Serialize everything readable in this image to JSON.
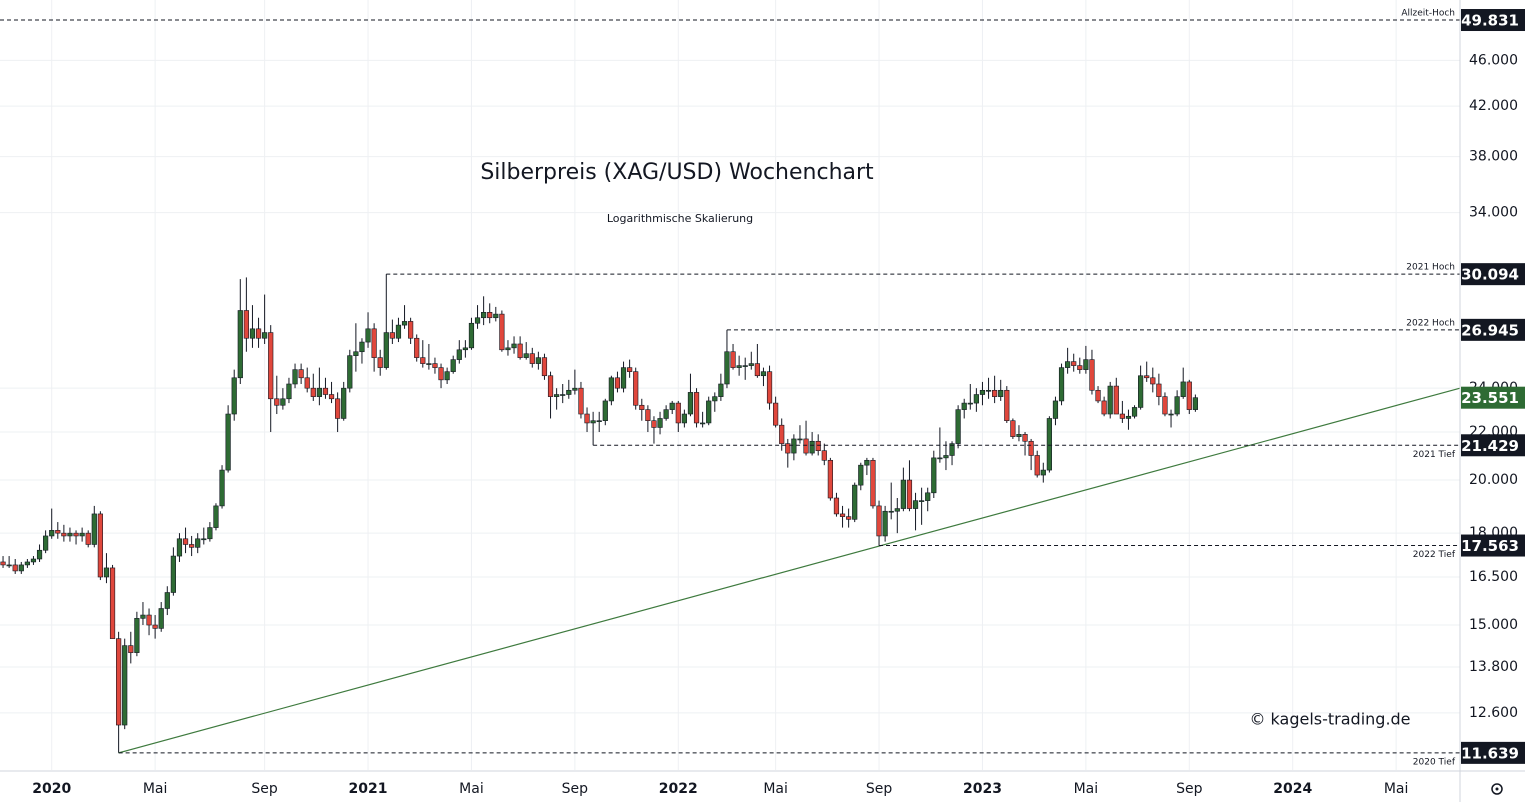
{
  "chart_data": {
    "type": "candlestick",
    "title": "Silberpreis (XAG/USD) Wochenchart",
    "subtitle": "Logarithmische Skalierung",
    "watermark": "© kagels-trading.de",
    "log_scale": true,
    "grid": true,
    "up_color": "#2e6b34",
    "down_color": "#e0473c",
    "trend_color": "#3e7a3e",
    "ylim": [
      11.25,
      51.85
    ],
    "yticks": [
      {
        "value": 12.6,
        "label": "12.600"
      },
      {
        "value": 13.8,
        "label": "13.800"
      },
      {
        "value": 15,
        "label": "15.000"
      },
      {
        "value": 16.5,
        "label": "16.500"
      },
      {
        "value": 18,
        "label": "18.000"
      },
      {
        "value": 20,
        "label": "20.000"
      },
      {
        "value": 22,
        "label": "22.000"
      },
      {
        "value": 24,
        "label": "24.000"
      },
      {
        "value": 34,
        "label": "34.000"
      },
      {
        "value": 38,
        "label": "38.000"
      },
      {
        "value": 42,
        "label": "42.000"
      },
      {
        "value": 46,
        "label": "46.000"
      }
    ],
    "levels": [
      {
        "value": 49.831,
        "note": "Allzeit-Hoch"
      },
      {
        "value": 30.094,
        "note": "2021 Hoch"
      },
      {
        "value": 26.945,
        "note": "2022 Hoch"
      },
      {
        "value": 21.429,
        "note": "2021 Tief"
      },
      {
        "value": 17.563,
        "note": "2022 Tief"
      },
      {
        "value": 11.639,
        "note": "2020 Tief"
      }
    ],
    "last_price": 23.551,
    "trendline": [
      11.639,
      24.0
    ],
    "categories": [
      null,
      null,
      null,
      null,
      null,
      null,
      null,
      null,
      "2020",
      null,
      null,
      null,
      null,
      null,
      null,
      null,
      null,
      null,
      null,
      null,
      null,
      null,
      null,
      null,
      null,
      "Mai",
      null,
      null,
      null,
      null,
      null,
      null,
      null,
      null,
      null,
      null,
      null,
      null,
      null,
      null,
      null,
      null,
      null,
      "Sep",
      null,
      null,
      null,
      null,
      null,
      null,
      null,
      null,
      null,
      null,
      null,
      null,
      null,
      null,
      null,
      null,
      "2021",
      null,
      null,
      null,
      null,
      null,
      null,
      null,
      null,
      null,
      null,
      null,
      null,
      null,
      null,
      null,
      null,
      "Mai",
      null,
      null,
      null,
      null,
      null,
      null,
      null,
      null,
      null,
      null,
      null,
      null,
      null,
      null,
      null,
      null,
      "Sep",
      null,
      null,
      null,
      null,
      null,
      null,
      null,
      null,
      null,
      null,
      null,
      null,
      null,
      null,
      null,
      null,
      "2022",
      null,
      null,
      null,
      null,
      null,
      null,
      null,
      null,
      null,
      null,
      null,
      null,
      null,
      null,
      null,
      "Mai",
      null,
      null,
      null,
      null,
      null,
      null,
      null,
      null,
      null,
      null,
      null,
      null,
      null,
      null,
      null,
      null,
      "Sep",
      null,
      null,
      null,
      null,
      null,
      null,
      null,
      null,
      null,
      null,
      null,
      null,
      null,
      null,
      null,
      null,
      "2023",
      null,
      null,
      null,
      null,
      null,
      null,
      null,
      null,
      null,
      null,
      null,
      null,
      null,
      null,
      null,
      null,
      "Mai",
      null,
      null,
      null,
      null,
      null,
      null,
      null,
      null,
      null,
      null,
      null,
      null,
      null,
      null,
      null,
      null,
      "Sep",
      null,
      null,
      null,
      null,
      null,
      null,
      null,
      null,
      null,
      null,
      null,
      null,
      null,
      null,
      null,
      null,
      "2024",
      null,
      null,
      null,
      null,
      null,
      null,
      null,
      null,
      null,
      null,
      null,
      null,
      null,
      null,
      null,
      null,
      "Mai",
      null,
      null,
      null,
      null,
      null,
      null,
      null,
      null,
      null,
      null
    ],
    "ohlc": [
      [
        17.0,
        17.2,
        16.8,
        16.9
      ],
      [
        16.9,
        17.2,
        16.8,
        16.9
      ],
      [
        16.9,
        17.1,
        16.6,
        16.7
      ],
      [
        16.7,
        17.0,
        16.6,
        16.9
      ],
      [
        16.9,
        17.1,
        16.8,
        17.0
      ],
      [
        17.0,
        17.2,
        16.9,
        17.1
      ],
      [
        17.1,
        17.6,
        17.0,
        17.4
      ],
      [
        17.4,
        18.1,
        17.3,
        17.9
      ],
      [
        17.9,
        18.9,
        17.8,
        18.1
      ],
      [
        18.1,
        18.4,
        17.8,
        18.0
      ],
      [
        18.0,
        18.3,
        17.7,
        17.9
      ],
      [
        17.9,
        18.2,
        17.7,
        18.0
      ],
      [
        18.0,
        18.1,
        17.6,
        17.9
      ],
      [
        17.9,
        18.2,
        17.7,
        18.0
      ],
      [
        18.0,
        18.1,
        17.5,
        17.6
      ],
      [
        17.6,
        19.0,
        17.5,
        18.7
      ],
      [
        18.7,
        18.8,
        16.4,
        16.5
      ],
      [
        16.5,
        17.3,
        16.3,
        16.8
      ],
      [
        16.8,
        16.9,
        14.6,
        14.6
      ],
      [
        14.6,
        14.8,
        11.639,
        12.3
      ],
      [
        12.3,
        14.6,
        12.2,
        14.4
      ],
      [
        14.4,
        14.8,
        13.9,
        14.2
      ],
      [
        14.2,
        15.4,
        14.1,
        15.2
      ],
      [
        15.2,
        15.7,
        15.0,
        15.3
      ],
      [
        15.3,
        15.5,
        14.7,
        15.0
      ],
      [
        15.0,
        15.3,
        14.6,
        14.9
      ],
      [
        14.9,
        15.7,
        14.8,
        15.5
      ],
      [
        15.5,
        16.2,
        15.3,
        16.0
      ],
      [
        16.0,
        17.5,
        15.9,
        17.2
      ],
      [
        17.2,
        18.0,
        17.0,
        17.8
      ],
      [
        17.8,
        18.2,
        17.3,
        17.6
      ],
      [
        17.6,
        17.9,
        17.2,
        17.5
      ],
      [
        17.5,
        18.0,
        17.3,
        17.8
      ],
      [
        17.8,
        18.2,
        17.6,
        17.8
      ],
      [
        17.8,
        18.4,
        17.7,
        18.2
      ],
      [
        18.2,
        19.1,
        18.1,
        19.0
      ],
      [
        19.0,
        20.6,
        18.9,
        20.4
      ],
      [
        20.4,
        23.2,
        20.3,
        22.8
      ],
      [
        22.8,
        24.9,
        22.5,
        24.5
      ],
      [
        24.5,
        29.8,
        24.2,
        28.0
      ],
      [
        28.0,
        29.9,
        25.8,
        26.5
      ],
      [
        26.5,
        28.3,
        26.0,
        27.0
      ],
      [
        27.0,
        27.6,
        26.0,
        26.5
      ],
      [
        26.5,
        28.9,
        26.2,
        26.8
      ],
      [
        26.8,
        27.2,
        22.0,
        23.5
      ],
      [
        23.5,
        24.6,
        22.8,
        23.2
      ],
      [
        23.2,
        24.0,
        23.0,
        23.5
      ],
      [
        23.5,
        24.5,
        23.3,
        24.2
      ],
      [
        24.2,
        25.2,
        24.0,
        24.9
      ],
      [
        24.9,
        25.2,
        24.2,
        24.5
      ],
      [
        24.5,
        25.0,
        23.8,
        24.0
      ],
      [
        24.0,
        24.7,
        23.4,
        23.6
      ],
      [
        23.6,
        25.0,
        23.2,
        24.0
      ],
      [
        24.0,
        24.5,
        23.5,
        23.7
      ],
      [
        23.7,
        24.3,
        23.3,
        23.5
      ],
      [
        23.5,
        23.8,
        22.0,
        22.6
      ],
      [
        22.6,
        24.3,
        22.5,
        24.0
      ],
      [
        24.0,
        25.9,
        23.8,
        25.6
      ],
      [
        25.6,
        27.3,
        24.8,
        25.8
      ],
      [
        25.8,
        26.5,
        25.2,
        26.3
      ],
      [
        26.3,
        27.9,
        26.0,
        27.0
      ],
      [
        27.0,
        27.3,
        24.8,
        25.5
      ],
      [
        25.5,
        25.9,
        24.6,
        25.0
      ],
      [
        25.0,
        30.094,
        24.9,
        26.8
      ],
      [
        26.8,
        27.5,
        26.2,
        26.5
      ],
      [
        26.5,
        27.6,
        26.3,
        27.2
      ],
      [
        27.2,
        28.3,
        27.0,
        27.4
      ],
      [
        27.4,
        27.6,
        26.2,
        26.5
      ],
      [
        26.5,
        26.7,
        25.3,
        25.5
      ],
      [
        25.5,
        26.4,
        25.0,
        25.2
      ],
      [
        25.2,
        26.2,
        24.9,
        25.2
      ],
      [
        25.2,
        25.5,
        24.7,
        25.0
      ],
      [
        25.0,
        25.2,
        24.0,
        24.4
      ],
      [
        24.4,
        25.0,
        24.2,
        24.8
      ],
      [
        24.8,
        25.6,
        24.7,
        25.4
      ],
      [
        25.4,
        26.4,
        25.2,
        25.9
      ],
      [
        25.9,
        26.4,
        25.5,
        26.0
      ],
      [
        26.0,
        27.6,
        25.9,
        27.3
      ],
      [
        27.3,
        28.3,
        27.0,
        27.6
      ],
      [
        27.6,
        28.8,
        27.2,
        27.9
      ],
      [
        27.9,
        28.4,
        27.3,
        27.6
      ],
      [
        27.6,
        28.2,
        27.4,
        27.8
      ],
      [
        27.8,
        28.0,
        25.8,
        25.9
      ],
      [
        25.9,
        26.4,
        25.6,
        26.0
      ],
      [
        26.0,
        26.6,
        25.7,
        26.2
      ],
      [
        26.2,
        26.6,
        25.4,
        25.5
      ],
      [
        25.5,
        26.3,
        25.4,
        25.7
      ],
      [
        25.7,
        26.0,
        25.0,
        25.2
      ],
      [
        25.2,
        25.8,
        24.9,
        25.5
      ],
      [
        25.5,
        25.7,
        24.4,
        24.6
      ],
      [
        24.6,
        24.8,
        22.6,
        23.6
      ],
      [
        23.6,
        24.0,
        23.0,
        23.7
      ],
      [
        23.7,
        24.2,
        23.3,
        23.7
      ],
      [
        23.7,
        24.4,
        23.5,
        23.9
      ],
      [
        23.9,
        24.9,
        23.7,
        24.0
      ],
      [
        24.0,
        24.3,
        22.6,
        22.8
      ],
      [
        22.8,
        23.1,
        22.0,
        22.4
      ],
      [
        22.4,
        22.9,
        21.429,
        22.5
      ],
      [
        22.5,
        22.9,
        22.0,
        22.5
      ],
      [
        22.5,
        23.5,
        22.3,
        23.4
      ],
      [
        23.4,
        24.6,
        23.2,
        24.5
      ],
      [
        24.5,
        24.8,
        23.8,
        24.0
      ],
      [
        24.0,
        25.3,
        23.8,
        25.0
      ],
      [
        25.0,
        25.4,
        24.5,
        24.8
      ],
      [
        24.8,
        25.0,
        23.0,
        23.2
      ],
      [
        23.2,
        23.5,
        22.5,
        23.0
      ],
      [
        23.0,
        23.2,
        22.0,
        22.5
      ],
      [
        22.5,
        22.7,
        21.5,
        22.2
      ],
      [
        22.2,
        22.9,
        21.9,
        22.6
      ],
      [
        22.6,
        23.2,
        22.5,
        23.0
      ],
      [
        23.0,
        23.4,
        22.8,
        23.3
      ],
      [
        23.3,
        23.4,
        22.0,
        22.4
      ],
      [
        22.4,
        23.0,
        22.2,
        22.8
      ],
      [
        22.8,
        24.7,
        22.7,
        23.8
      ],
      [
        23.8,
        24.0,
        22.2,
        22.4
      ],
      [
        22.4,
        22.9,
        22.2,
        22.4
      ],
      [
        22.4,
        23.6,
        22.3,
        23.4
      ],
      [
        23.4,
        23.8,
        22.9,
        23.6
      ],
      [
        23.6,
        24.7,
        23.4,
        24.2
      ],
      [
        24.2,
        26.945,
        24.0,
        25.8
      ],
      [
        25.8,
        26.2,
        24.9,
        25.0
      ],
      [
        25.0,
        25.6,
        24.6,
        25.1
      ],
      [
        25.1,
        25.5,
        24.4,
        25.1
      ],
      [
        25.1,
        25.8,
        24.9,
        25.2
      ],
      [
        25.2,
        26.2,
        24.5,
        24.6
      ],
      [
        24.6,
        25.0,
        24.1,
        24.8
      ],
      [
        24.8,
        25.1,
        23.0,
        23.3
      ],
      [
        23.3,
        23.6,
        22.2,
        22.3
      ],
      [
        22.3,
        22.6,
        21.2,
        21.5
      ],
      [
        21.5,
        21.7,
        20.5,
        21.1
      ],
      [
        21.1,
        21.9,
        20.8,
        21.7
      ],
      [
        21.7,
        22.3,
        21.5,
        21.7
      ],
      [
        21.7,
        22.5,
        21.0,
        21.1
      ],
      [
        21.1,
        22.0,
        21.0,
        21.6
      ],
      [
        21.6,
        21.9,
        21.0,
        21.2
      ],
      [
        21.2,
        21.5,
        20.6,
        20.8
      ],
      [
        20.8,
        20.9,
        19.2,
        19.3
      ],
      [
        19.3,
        19.5,
        18.6,
        18.7
      ],
      [
        18.7,
        19.0,
        18.2,
        18.6
      ],
      [
        18.6,
        18.9,
        18.2,
        18.5
      ],
      [
        18.5,
        19.9,
        18.4,
        19.8
      ],
      [
        19.8,
        20.7,
        19.6,
        20.6
      ],
      [
        20.6,
        20.9,
        20.2,
        20.8
      ],
      [
        20.8,
        20.9,
        18.9,
        19.0
      ],
      [
        19.0,
        19.2,
        17.563,
        17.9
      ],
      [
        17.9,
        19.0,
        17.7,
        18.8
      ],
      [
        18.8,
        19.9,
        18.5,
        18.8
      ],
      [
        18.8,
        19.3,
        18.0,
        18.9
      ],
      [
        18.9,
        20.5,
        18.8,
        20.0
      ],
      [
        20.0,
        20.8,
        18.8,
        18.9
      ],
      [
        18.9,
        19.5,
        18.1,
        19.2
      ],
      [
        19.2,
        19.7,
        18.3,
        19.2
      ],
      [
        19.2,
        19.7,
        18.8,
        19.5
      ],
      [
        19.5,
        21.2,
        19.3,
        20.9
      ],
      [
        20.9,
        22.2,
        20.7,
        20.9
      ],
      [
        20.9,
        21.6,
        20.4,
        21.0
      ],
      [
        21.0,
        21.6,
        20.6,
        21.5
      ],
      [
        21.5,
        23.2,
        21.3,
        23.0
      ],
      [
        23.0,
        23.5,
        22.6,
        23.3
      ],
      [
        23.3,
        24.2,
        23.0,
        23.3
      ],
      [
        23.3,
        24.0,
        22.9,
        23.7
      ],
      [
        23.7,
        24.3,
        23.2,
        23.9
      ],
      [
        23.9,
        24.5,
        23.5,
        23.9
      ],
      [
        23.9,
        24.6,
        23.3,
        23.6
      ],
      [
        23.6,
        24.4,
        23.4,
        23.9
      ],
      [
        23.9,
        24.1,
        22.4,
        22.5
      ],
      [
        22.5,
        22.6,
        21.7,
        21.8
      ],
      [
        21.8,
        22.3,
        21.6,
        21.9
      ],
      [
        21.9,
        22.0,
        21.0,
        21.6
      ],
      [
        21.6,
        21.7,
        20.4,
        21.0
      ],
      [
        21.0,
        21.2,
        20.1,
        20.2
      ],
      [
        20.2,
        20.7,
        19.9,
        20.4
      ],
      [
        20.4,
        22.7,
        20.3,
        22.6
      ],
      [
        22.6,
        23.6,
        22.3,
        23.4
      ],
      [
        23.4,
        25.2,
        23.2,
        25.0
      ],
      [
        25.0,
        26.0,
        24.7,
        25.3
      ],
      [
        25.3,
        25.7,
        24.8,
        25.1
      ],
      [
        25.1,
        25.5,
        24.7,
        24.9
      ],
      [
        24.9,
        26.1,
        24.7,
        25.4
      ],
      [
        25.4,
        25.9,
        23.7,
        23.9
      ],
      [
        23.9,
        24.1,
        23.3,
        23.4
      ],
      [
        23.4,
        23.6,
        22.7,
        22.8
      ],
      [
        22.8,
        24.3,
        22.6,
        24.1
      ],
      [
        24.1,
        24.5,
        22.8,
        22.8
      ],
      [
        22.8,
        23.4,
        22.4,
        22.6
      ],
      [
        22.6,
        23.0,
        22.1,
        22.7
      ],
      [
        22.7,
        23.2,
        22.6,
        23.1
      ],
      [
        23.1,
        25.1,
        23.0,
        24.6
      ],
      [
        24.6,
        25.3,
        24.3,
        24.5
      ],
      [
        24.5,
        25.0,
        23.8,
        24.2
      ],
      [
        24.2,
        24.7,
        23.2,
        23.6
      ],
      [
        23.6,
        23.8,
        22.7,
        22.8
      ],
      [
        22.8,
        23.0,
        22.2,
        22.8
      ],
      [
        22.8,
        23.9,
        22.7,
        23.6
      ],
      [
        23.6,
        25.0,
        23.5,
        24.3
      ],
      [
        24.3,
        24.4,
        22.8,
        23.0
      ],
      [
        23.0,
        23.7,
        22.9,
        23.551
      ],
      null,
      null,
      null,
      null,
      null,
      null,
      null,
      null,
      null,
      null,
      null,
      null,
      null,
      null,
      null,
      null,
      null,
      null,
      null,
      null,
      null,
      null,
      null,
      null,
      null,
      null,
      null,
      null,
      null,
      null,
      null,
      null,
      null,
      null,
      null,
      null,
      null,
      null,
      null,
      null,
      null,
      null,
      null
    ]
  }
}
